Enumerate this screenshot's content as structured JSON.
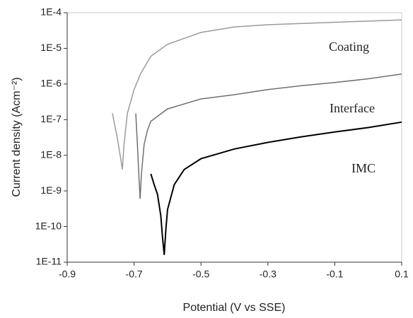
{
  "chart_data": {
    "type": "line",
    "x_label": "Potential (V vs SSE)",
    "y_label": "Current density (Acm⁻²)",
    "xlim": [
      -0.9,
      0.1
    ],
    "xticks": [
      -0.9,
      -0.7,
      -0.5,
      -0.3,
      -0.1,
      0.1
    ],
    "ylim": [
      1e-11,
      0.0001
    ],
    "ylog": true,
    "yticks": [
      {
        "value": 1e-11,
        "label": "1E-11"
      },
      {
        "value": 1e-10,
        "label": "1E-10"
      },
      {
        "value": 1e-09,
        "label": "1E-9"
      },
      {
        "value": 1e-08,
        "label": "1E-8"
      },
      {
        "value": 1e-07,
        "label": "1E-7"
      },
      {
        "value": 1e-06,
        "label": "1E-6"
      },
      {
        "value": 1e-05,
        "label": "1E-5"
      },
      {
        "value": 0.0001,
        "label": "1E-4"
      }
    ],
    "series": [
      {
        "name": "Coating",
        "color": "#9a9a9a",
        "x": [
          -0.765,
          -0.75,
          -0.74,
          -0.735,
          -0.73,
          -0.72,
          -0.7,
          -0.68,
          -0.65,
          -0.6,
          -0.5,
          -0.4,
          -0.3,
          -0.2,
          -0.1,
          0,
          0.1
        ],
        "values": [
          1.5e-07,
          3e-08,
          8e-09,
          4e-09,
          2e-08,
          1.5e-07,
          7e-07,
          2e-06,
          6e-06,
          1.3e-05,
          2.8e-05,
          4e-05,
          4.6e-05,
          5e-05,
          5.4e-05,
          5.8e-05,
          6.3e-05
        ]
      },
      {
        "name": "Interface",
        "color": "#707070",
        "x": [
          -0.695,
          -0.69,
          -0.685,
          -0.682,
          -0.678,
          -0.67,
          -0.66,
          -0.65,
          -0.6,
          -0.5,
          -0.4,
          -0.3,
          -0.2,
          -0.1,
          0,
          0.1
        ],
        "values": [
          1.5e-07,
          2e-08,
          2e-09,
          6e-10,
          3e-09,
          2e-08,
          5e-08,
          9e-08,
          2e-07,
          3.8e-07,
          5e-07,
          7e-07,
          9e-07,
          1.1e-06,
          1.4e-06,
          1.9e-06
        ]
      },
      {
        "name": "IMC",
        "color": "#000000",
        "x": [
          -0.65,
          -0.64,
          -0.63,
          -0.62,
          -0.615,
          -0.61,
          -0.605,
          -0.6,
          -0.58,
          -0.55,
          -0.5,
          -0.4,
          -0.3,
          -0.2,
          -0.1,
          0,
          0.1
        ],
        "values": [
          3e-09,
          1.5e-09,
          8e-10,
          2e-10,
          5e-11,
          1.6e-11,
          8e-11,
          3e-10,
          1.5e-09,
          4e-09,
          8e-09,
          1.5e-08,
          2.3e-08,
          3.3e-08,
          4.5e-08,
          6e-08,
          8.5e-08
        ]
      }
    ]
  }
}
